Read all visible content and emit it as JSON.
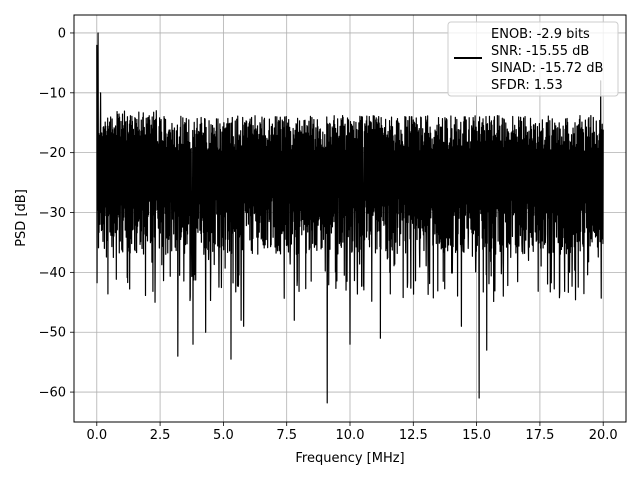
{
  "chart_data": {
    "type": "line",
    "xlabel": "Frequency [MHz]",
    "ylabel": "PSD [dB]",
    "xlim": [
      -0.9,
      20.9
    ],
    "ylim": [
      -65,
      3
    ],
    "xticks": [
      0.0,
      2.5,
      5.0,
      7.5,
      10.0,
      12.5,
      15.0,
      17.5,
      20.0
    ],
    "xtick_labels": [
      "0.0",
      "2.5",
      "5.0",
      "7.5",
      "10.0",
      "12.5",
      "15.0",
      "17.5",
      "20.0"
    ],
    "yticks": [
      0,
      -10,
      -20,
      -30,
      -40,
      -50,
      -60
    ],
    "ytick_labels": [
      "0",
      "−10",
      "−20",
      "−30",
      "−40",
      "−50",
      "−60"
    ],
    "grid": true,
    "legend_position": "top-right",
    "legend_lines": [
      "ENOB: -2.9 bits",
      "SNR: -15.55 dB",
      "SINAD: -15.72 dB",
      "SFDR: 1.53"
    ],
    "series_color": "#000000",
    "x_range": [
      0.0,
      20.0
    ],
    "baseline_upper": -18,
    "baseline_lower": -32,
    "key_points": [
      {
        "x": 0.0,
        "y": -2
      },
      {
        "x": 0.05,
        "y": 0
      },
      {
        "x": 0.1,
        "y": -23
      },
      {
        "x": 0.15,
        "y": -10
      },
      {
        "x": 0.3,
        "y": -36
      },
      {
        "x": 2.3,
        "y": -45
      },
      {
        "x": 2.35,
        "y": -13
      },
      {
        "x": 3.2,
        "y": -54
      },
      {
        "x": 3.8,
        "y": -52
      },
      {
        "x": 4.3,
        "y": -50
      },
      {
        "x": 5.3,
        "y": -54.5
      },
      {
        "x": 5.7,
        "y": -48
      },
      {
        "x": 5.8,
        "y": -49
      },
      {
        "x": 7.8,
        "y": -48
      },
      {
        "x": 9.1,
        "y": -61.8
      },
      {
        "x": 10.0,
        "y": -52
      },
      {
        "x": 11.2,
        "y": -51
      },
      {
        "x": 14.4,
        "y": -49
      },
      {
        "x": 15.1,
        "y": -61
      },
      {
        "x": 15.4,
        "y": -53
      },
      {
        "x": 19.9,
        "y": -8
      }
    ]
  }
}
